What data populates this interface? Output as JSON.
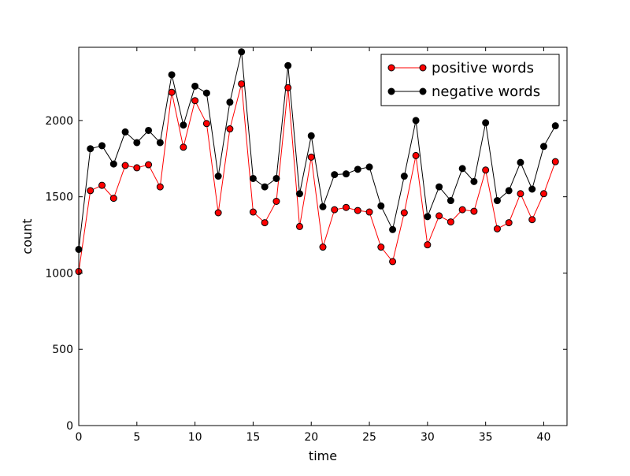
{
  "chart_data": {
    "type": "line",
    "title": "",
    "xlabel": "time",
    "ylabel": "count",
    "xlim": [
      0,
      42
    ],
    "ylim": [
      0,
      2480
    ],
    "xticks": [
      0,
      5,
      10,
      15,
      20,
      25,
      30,
      35,
      40
    ],
    "yticks": [
      0,
      500,
      1000,
      1500,
      2000
    ],
    "grid": false,
    "legend_position": "top-right",
    "x": [
      0,
      1,
      2,
      3,
      4,
      5,
      6,
      7,
      8,
      9,
      10,
      11,
      12,
      13,
      14,
      15,
      16,
      17,
      18,
      19,
      20,
      21,
      22,
      23,
      24,
      25,
      26,
      27,
      28,
      29,
      30,
      31,
      32,
      33,
      34,
      35,
      36,
      37,
      38,
      39,
      40,
      41
    ],
    "series": [
      {
        "name": "positive words",
        "color": "#ff0000",
        "values": [
          1010,
          1540,
          1575,
          1490,
          1705,
          1690,
          1710,
          1565,
          2185,
          1825,
          2130,
          1980,
          1395,
          1945,
          2240,
          1400,
          1330,
          1470,
          2215,
          1305,
          1760,
          1170,
          1415,
          1430,
          1410,
          1400,
          1170,
          1075,
          1395,
          1770,
          1185,
          1375,
          1335,
          1415,
          1405,
          1675,
          1290,
          1330,
          1520,
          1350,
          1520,
          1730
        ]
      },
      {
        "name": "negative words",
        "color": "#000000",
        "values": [
          1155,
          1815,
          1835,
          1715,
          1925,
          1855,
          1935,
          1855,
          2300,
          1970,
          2225,
          2180,
          1635,
          2120,
          2450,
          1620,
          1565,
          1620,
          2360,
          1520,
          1900,
          1435,
          1645,
          1650,
          1680,
          1695,
          1440,
          1285,
          1635,
          2000,
          1370,
          1565,
          1475,
          1685,
          1600,
          1985,
          1475,
          1540,
          1725,
          1550,
          1830,
          1965
        ]
      }
    ]
  }
}
